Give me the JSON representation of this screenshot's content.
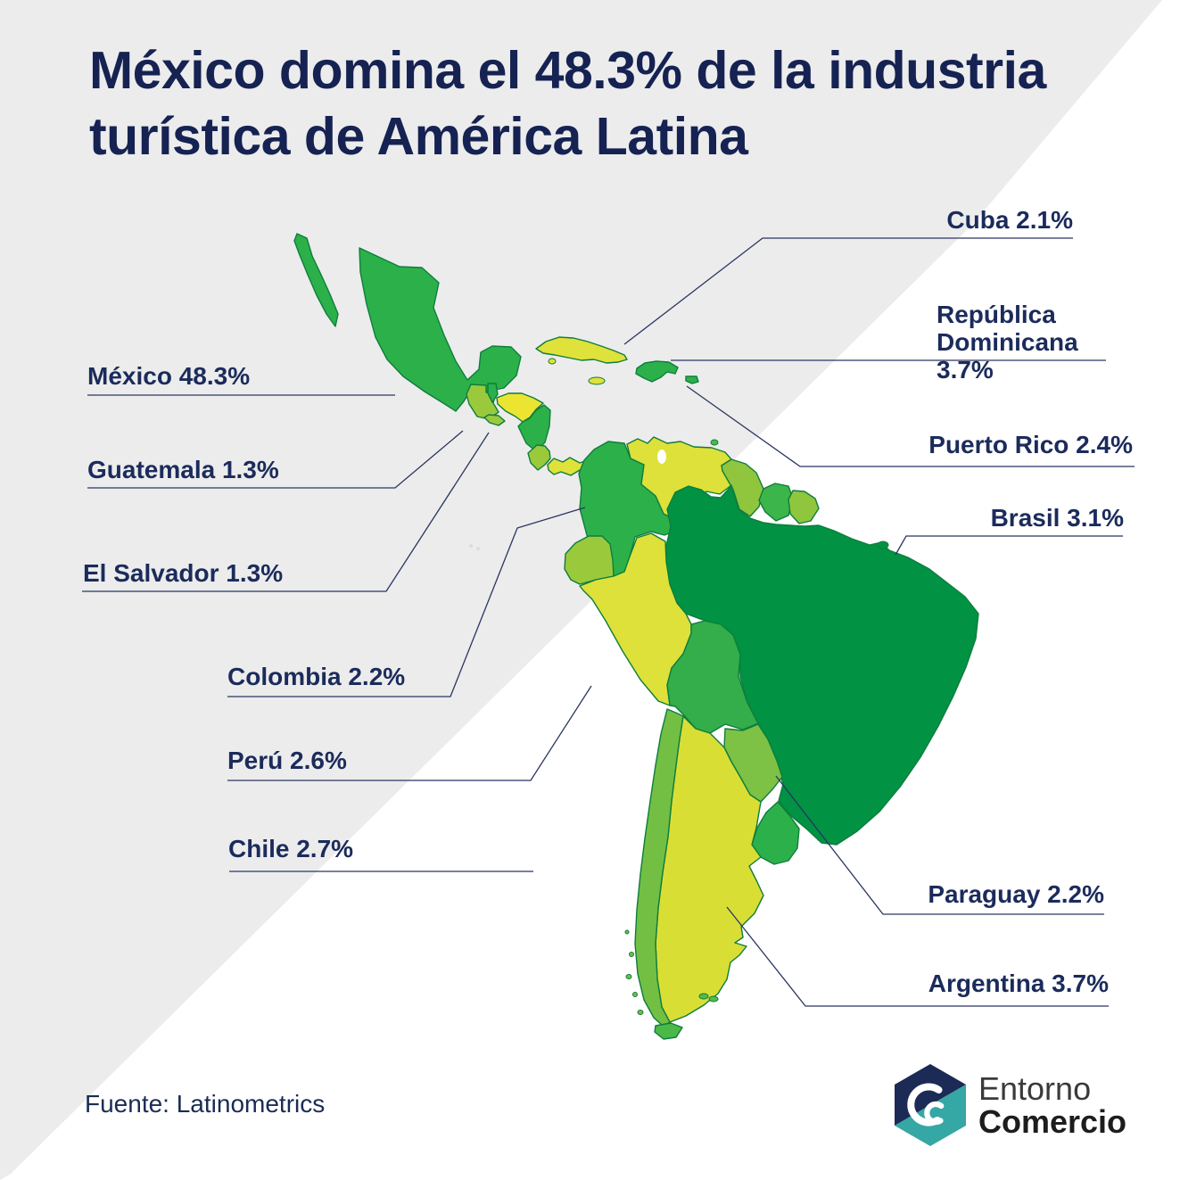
{
  "title": "México domina el 48.3% de la industria turística de América Latina",
  "source": "Fuente: Latinometrics",
  "brand": {
    "name_top": "Entorno",
    "name_bottom": "Comercio",
    "hex_navy": "#1B2B55",
    "hex_teal": "#35A7A4"
  },
  "theme": {
    "background": "#FFFFFF",
    "wedge_gray": "#ECECEC",
    "title_color": "#152252",
    "label_color": "#1B2B5B",
    "line_color": "#2A3562",
    "map_stroke": "#0E7D3D"
  },
  "labels": {
    "mexico": "México 48.3%",
    "guatemala": "Guatemala 1.3%",
    "elsalvador": "El Salvador 1.3%",
    "colombia": "Colombia 2.2%",
    "peru": "Perú 2.6%",
    "chile": "Chile 2.7%",
    "cuba": "Cuba 2.1%",
    "dominicana": "República Dominicana 3.7%",
    "puertorico": "Puerto Rico 2.4%",
    "brasil": "Brasil 3.1%",
    "paraguay": "Paraguay 2.2%",
    "argentina": "Argentina 3.7%"
  },
  "chart_data": {
    "type": "choropleth-map",
    "title": "Share of Latin America tourism industry",
    "unit": "percent",
    "values": [
      {
        "country": "México",
        "share_pct": 48.3
      },
      {
        "country": "Cuba",
        "share_pct": 2.1
      },
      {
        "country": "República Dominicana",
        "share_pct": 3.7
      },
      {
        "country": "Puerto Rico",
        "share_pct": 2.4
      },
      {
        "country": "Brasil",
        "share_pct": 3.1
      },
      {
        "country": "Guatemala",
        "share_pct": 1.3
      },
      {
        "country": "El Salvador",
        "share_pct": 1.3
      },
      {
        "country": "Colombia",
        "share_pct": 2.2
      },
      {
        "country": "Perú",
        "share_pct": 2.6
      },
      {
        "country": "Chile",
        "share_pct": 2.7
      },
      {
        "country": "Paraguay",
        "share_pct": 2.2
      },
      {
        "country": "Argentina",
        "share_pct": 3.7
      }
    ]
  },
  "map": {
    "colors": {
      "mexico": "#2CB14A",
      "guatemala": "#9ACA3C",
      "belize": "#2CB14A",
      "honduras": "#EBE532",
      "el_salvador": "#9ACA3C",
      "nicaragua": "#2CB14A",
      "costa_rica": "#9ACA3C",
      "panama": "#DFE23A",
      "cuba": "#DFE23A",
      "jamaica": "#DFE23A",
      "dominican_republic": "#2CB14A",
      "puerto_rico": "#2CB14A",
      "trinidad": "#4CB848",
      "colombia": "#2CB14A",
      "venezuela": "#DDE13A",
      "guyana": "#8FC63E",
      "suriname": "#3CB54A",
      "french_guiana": "#8FC63E",
      "ecuador": "#9ACA3C",
      "peru": "#DDE13A",
      "brazil": "#019244",
      "bolivia": "#33AE4B",
      "paraguay": "#7DC245",
      "chile": "#72BF44",
      "argentina": "#D9DE35",
      "uruguay": "#2CB14A",
      "tierra_del_fuego": "#4CB848",
      "falklands": "#55BA46",
      "islet": "#72BF44",
      "amazon_island": "#019244",
      "galapagos": "#D8DED6",
      "lake": "#FFFFFF"
    }
  }
}
